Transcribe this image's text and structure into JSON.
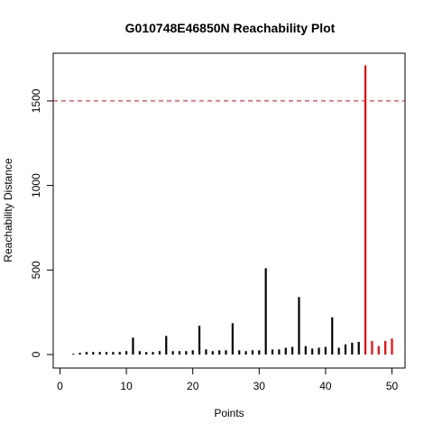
{
  "chart_data": {
    "type": "bar",
    "title": "G010748E46850N Reachability Plot",
    "xlabel": "Points",
    "ylabel": "Reachability Distance",
    "xlim": [
      0,
      51
    ],
    "ylim": [
      0,
      1750
    ],
    "xticks": [
      0,
      10,
      20,
      30,
      40,
      50
    ],
    "yticks": [
      0,
      500,
      1000,
      1500
    ],
    "threshold": 1500,
    "threshold_color": "#ff0000",
    "grid": false,
    "colors": {
      "normal": "#000000",
      "highlight": "#ff0000"
    },
    "x": [
      1,
      2,
      3,
      4,
      5,
      6,
      7,
      8,
      9,
      10,
      11,
      12,
      13,
      14,
      15,
      16,
      17,
      18,
      19,
      20,
      21,
      22,
      23,
      24,
      25,
      26,
      27,
      28,
      29,
      30,
      31,
      32,
      33,
      34,
      35,
      36,
      37,
      38,
      39,
      40,
      41,
      42,
      43,
      44,
      45,
      46,
      47,
      48,
      49,
      50
    ],
    "values": [
      0,
      5,
      10,
      15,
      15,
      15,
      15,
      15,
      15,
      20,
      100,
      20,
      15,
      15,
      20,
      110,
      20,
      20,
      20,
      25,
      170,
      30,
      20,
      25,
      25,
      185,
      25,
      20,
      25,
      25,
      510,
      30,
      30,
      40,
      45,
      340,
      50,
      35,
      40,
      45,
      220,
      40,
      60,
      70,
      75,
      1710,
      80,
      50,
      80,
      95
    ],
    "highlight_from": 46
  }
}
